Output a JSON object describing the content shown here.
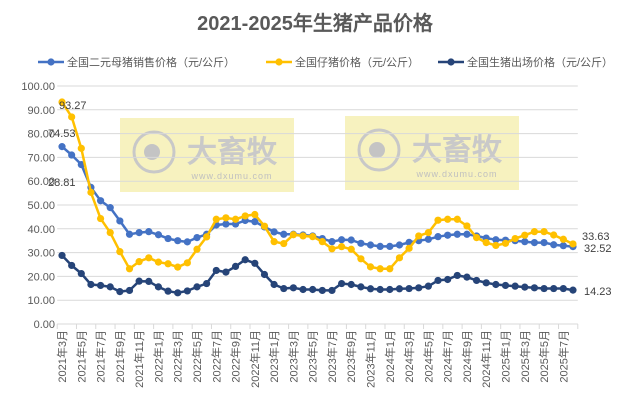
{
  "chart_data": {
    "type": "line",
    "title": "2021-2025年生猪产品价格",
    "xlabel": "",
    "ylabel": "",
    "ylim": [
      0,
      100
    ],
    "yticks": [
      "0.00",
      "10.00",
      "20.00",
      "30.00",
      "40.00",
      "50.00",
      "60.00",
      "70.00",
      "80.00",
      "90.00",
      "100.00"
    ],
    "grid": true,
    "legend_position": "top",
    "x": [
      "2021年3月",
      "2021年4月",
      "2021年5月",
      "2021年6月",
      "2021年7月",
      "2021年8月",
      "2021年9月",
      "2021年10月",
      "2021年11月",
      "2021年12月",
      "2022年1月",
      "2022年2月",
      "2022年3月",
      "2022年4月",
      "2022年5月",
      "2022年6月",
      "2022年7月",
      "2022年8月",
      "2022年9月",
      "2022年10月",
      "2022年11月",
      "2022年12月",
      "2023年1月",
      "2023年2月",
      "2023年3月",
      "2023年4月",
      "2023年5月",
      "2023年6月",
      "2023年7月",
      "2023年8月",
      "2023年9月",
      "2023年10月",
      "2023年11月",
      "2023年12月",
      "2024年1月",
      "2024年2月",
      "2024年3月",
      "2024年4月",
      "2024年5月",
      "2024年6月",
      "2024年7月",
      "2024年8月",
      "2024年9月",
      "2024年10月",
      "2024年11月",
      "2024年12月",
      "2025年1月",
      "2025年2月",
      "2025年3月",
      "2025年4月",
      "2025年5月",
      "2025年6月",
      "2025年7月",
      "2025年8月"
    ],
    "series": [
      {
        "name": "全国二元母猪销售价格（元/公斤）",
        "color": "#4472C4",
        "values": [
          74.53,
          71.0,
          67.0,
          57.4,
          51.8,
          48.9,
          43.3,
          37.7,
          38.4,
          38.8,
          37.5,
          35.9,
          35.0,
          34.5,
          36.3,
          37.7,
          41.6,
          42.0,
          42.0,
          43.5,
          43.0,
          40.8,
          38.7,
          37.7,
          37.7,
          37.4,
          37.0,
          35.9,
          34.6,
          35.4,
          35.3,
          33.9,
          33.2,
          32.6,
          32.6,
          33.2,
          34.3,
          35.0,
          35.6,
          36.7,
          37.3,
          37.7,
          37.7,
          37.0,
          36.1,
          35.4,
          35.2,
          35.0,
          34.6,
          34.2,
          34.2,
          33.3,
          32.9,
          32.52
        ],
        "labels": {
          "first": "74.53",
          "last": "32.52"
        }
      },
      {
        "name": "全国仔猪价格（元/公斤）",
        "color": "#FFC000",
        "values": [
          93.27,
          87.0,
          73.8,
          55.3,
          44.3,
          38.4,
          30.4,
          23.2,
          26.2,
          27.8,
          26.0,
          25.3,
          23.9,
          25.7,
          31.4,
          36.6,
          44.0,
          44.6,
          44.0,
          45.4,
          46.0,
          41.1,
          34.6,
          33.8,
          37.5,
          37.0,
          36.7,
          34.6,
          31.6,
          32.5,
          31.4,
          27.4,
          24.0,
          23.2,
          23.2,
          27.8,
          31.8,
          37.0,
          38.4,
          43.6,
          44.0,
          44.0,
          41.2,
          36.3,
          34.2,
          33.0,
          33.9,
          35.9,
          37.3,
          38.8,
          38.8,
          37.4,
          35.6,
          33.63
        ],
        "labels": {
          "first": "93.27",
          "last": "33.63"
        }
      },
      {
        "name": "全国生猪出场价格（元/公斤）",
        "color": "#264478",
        "values": [
          28.81,
          24.6,
          21.2,
          16.6,
          16.2,
          15.6,
          13.6,
          14.1,
          18.0,
          17.9,
          15.6,
          13.8,
          13.1,
          13.9,
          15.6,
          17.0,
          22.5,
          21.8,
          24.2,
          27.0,
          25.5,
          20.8,
          16.6,
          14.9,
          15.2,
          14.5,
          14.5,
          14.1,
          14.1,
          17.0,
          16.6,
          15.6,
          14.8,
          14.5,
          14.5,
          14.8,
          14.9,
          15.2,
          15.9,
          18.3,
          18.7,
          20.4,
          19.7,
          18.3,
          17.3,
          16.6,
          16.2,
          15.9,
          15.5,
          15.2,
          14.9,
          14.9,
          14.9,
          14.23
        ],
        "labels": {
          "first": "28.81",
          "last": "14.23"
        }
      }
    ]
  },
  "watermark": {
    "brand": "大畜牧",
    "url": "www.dxumu.com"
  }
}
